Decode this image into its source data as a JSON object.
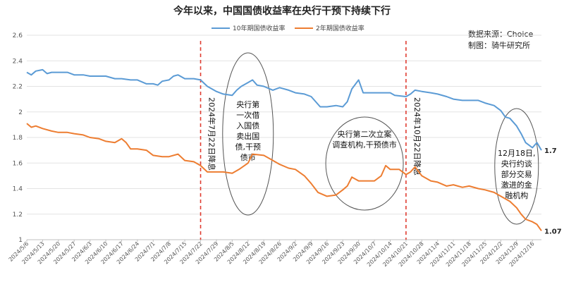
{
  "chart_data": {
    "type": "line",
    "title": "今年以来，中国国债收益率在央行干预下持续下行",
    "source": "数据来源：Choice",
    "maker": "制图：骑牛研究所",
    "ylim": [
      1.0,
      2.6
    ],
    "yticks": [
      "1",
      "1.2",
      "1.4",
      "1.6",
      "1.8",
      "2",
      "2.2",
      "2.4",
      "2.6"
    ],
    "x_start": "2024/5/6",
    "x_end": "2024/12/20",
    "x_ticks": [
      "2024/5/6",
      "2024/5/13",
      "2024/5/20",
      "2024/5/27",
      "2024/6/3",
      "2024/6/10",
      "2024/6/17",
      "2024/6/24",
      "2024/7/1",
      "2024/7/8",
      "2024/7/15",
      "2024/7/22",
      "2024/7/29",
      "2024/8/5",
      "2024/8/12",
      "2024/8/19",
      "2024/8/26",
      "2024/9/2",
      "2024/9/9",
      "2024/9/16",
      "2024/9/23",
      "2024/9/30",
      "2024/10/7",
      "2024/10/14",
      "2024/10/21",
      "2024/10/28",
      "2024/11/4",
      "2024/11/11",
      "2024/11/18",
      "2024/11/25",
      "2024/12/2",
      "2024/12/9",
      "2024/12/16"
    ],
    "grid": true,
    "legend_position": "top",
    "series": [
      {
        "name": "10年期国债收益率",
        "color": "#5B9BD5",
        "end_label": "1.7",
        "points": [
          [
            "2024/5/6",
            2.31
          ],
          [
            "2024/5/8",
            2.29
          ],
          [
            "2024/5/10",
            2.32
          ],
          [
            "2024/5/13",
            2.33
          ],
          [
            "2024/5/15",
            2.3
          ],
          [
            "2024/5/17",
            2.31
          ],
          [
            "2024/5/20",
            2.31
          ],
          [
            "2024/5/24",
            2.31
          ],
          [
            "2024/5/27",
            2.29
          ],
          [
            "2024/5/31",
            2.29
          ],
          [
            "2024/6/3",
            2.28
          ],
          [
            "2024/6/7",
            2.28
          ],
          [
            "2024/6/10",
            2.28
          ],
          [
            "2024/6/14",
            2.26
          ],
          [
            "2024/6/17",
            2.26
          ],
          [
            "2024/6/21",
            2.25
          ],
          [
            "2024/6/24",
            2.25
          ],
          [
            "2024/6/28",
            2.22
          ],
          [
            "2024/7/1",
            2.22
          ],
          [
            "2024/7/3",
            2.21
          ],
          [
            "2024/7/5",
            2.24
          ],
          [
            "2024/7/8",
            2.25
          ],
          [
            "2024/7/10",
            2.28
          ],
          [
            "2024/7/12",
            2.29
          ],
          [
            "2024/7/15",
            2.26
          ],
          [
            "2024/7/19",
            2.26
          ],
          [
            "2024/7/22",
            2.25
          ],
          [
            "2024/7/25",
            2.2
          ],
          [
            "2024/7/29",
            2.16
          ],
          [
            "2024/8/1",
            2.14
          ],
          [
            "2024/8/5",
            2.13
          ],
          [
            "2024/8/7",
            2.17
          ],
          [
            "2024/8/9",
            2.2
          ],
          [
            "2024/8/12",
            2.23
          ],
          [
            "2024/8/14",
            2.25
          ],
          [
            "2024/8/16",
            2.21
          ],
          [
            "2024/8/19",
            2.2
          ],
          [
            "2024/8/23",
            2.17
          ],
          [
            "2024/8/26",
            2.19
          ],
          [
            "2024/8/30",
            2.17
          ],
          [
            "2024/9/2",
            2.15
          ],
          [
            "2024/9/6",
            2.14
          ],
          [
            "2024/9/9",
            2.12
          ],
          [
            "2024/9/13",
            2.04
          ],
          [
            "2024/9/16",
            2.04
          ],
          [
            "2024/9/20",
            2.05
          ],
          [
            "2024/9/23",
            2.04
          ],
          [
            "2024/9/25",
            2.08
          ],
          [
            "2024/9/27",
            2.18
          ],
          [
            "2024/9/30",
            2.25
          ],
          [
            "2024/10/2",
            2.15
          ],
          [
            "2024/10/7",
            2.15
          ],
          [
            "2024/10/10",
            2.15
          ],
          [
            "2024/10/14",
            2.15
          ],
          [
            "2024/10/16",
            2.13
          ],
          [
            "2024/10/21",
            2.12
          ],
          [
            "2024/10/23",
            2.14
          ],
          [
            "2024/10/25",
            2.17
          ],
          [
            "2024/10/28",
            2.16
          ],
          [
            "2024/11/1",
            2.15
          ],
          [
            "2024/11/4",
            2.14
          ],
          [
            "2024/11/8",
            2.12
          ],
          [
            "2024/11/11",
            2.1
          ],
          [
            "2024/11/15",
            2.09
          ],
          [
            "2024/11/18",
            2.09
          ],
          [
            "2024/11/22",
            2.09
          ],
          [
            "2024/11/25",
            2.07
          ],
          [
            "2024/11/29",
            2.05
          ],
          [
            "2024/12/2",
            2.01
          ],
          [
            "2024/12/4",
            1.96
          ],
          [
            "2024/12/6",
            1.95
          ],
          [
            "2024/12/9",
            1.89
          ],
          [
            "2024/12/11",
            1.83
          ],
          [
            "2024/12/13",
            1.76
          ],
          [
            "2024/12/16",
            1.72
          ],
          [
            "2024/12/18",
            1.76
          ],
          [
            "2024/12/20",
            1.7
          ]
        ]
      },
      {
        "name": "2年期国债收益率",
        "color": "#ED7D31",
        "end_label": "1.07",
        "points": [
          [
            "2024/5/6",
            1.91
          ],
          [
            "2024/5/8",
            1.88
          ],
          [
            "2024/5/10",
            1.89
          ],
          [
            "2024/5/13",
            1.87
          ],
          [
            "2024/5/17",
            1.85
          ],
          [
            "2024/5/20",
            1.84
          ],
          [
            "2024/5/24",
            1.84
          ],
          [
            "2024/5/27",
            1.83
          ],
          [
            "2024/5/31",
            1.82
          ],
          [
            "2024/6/3",
            1.8
          ],
          [
            "2024/6/7",
            1.79
          ],
          [
            "2024/6/10",
            1.77
          ],
          [
            "2024/6/14",
            1.76
          ],
          [
            "2024/6/17",
            1.79
          ],
          [
            "2024/6/19",
            1.76
          ],
          [
            "2024/6/21",
            1.71
          ],
          [
            "2024/6/24",
            1.71
          ],
          [
            "2024/6/28",
            1.7
          ],
          [
            "2024/7/1",
            1.66
          ],
          [
            "2024/7/5",
            1.65
          ],
          [
            "2024/7/8",
            1.65
          ],
          [
            "2024/7/12",
            1.67
          ],
          [
            "2024/7/15",
            1.62
          ],
          [
            "2024/7/19",
            1.61
          ],
          [
            "2024/7/22",
            1.58
          ],
          [
            "2024/7/25",
            1.53
          ],
          [
            "2024/7/29",
            1.53
          ],
          [
            "2024/8/1",
            1.53
          ],
          [
            "2024/8/5",
            1.52
          ],
          [
            "2024/8/8",
            1.55
          ],
          [
            "2024/8/12",
            1.6
          ],
          [
            "2024/8/14",
            1.67
          ],
          [
            "2024/8/19",
            1.66
          ],
          [
            "2024/8/22",
            1.63
          ],
          [
            "2024/8/26",
            1.59
          ],
          [
            "2024/8/30",
            1.56
          ],
          [
            "2024/9/2",
            1.55
          ],
          [
            "2024/9/6",
            1.5
          ],
          [
            "2024/9/9",
            1.44
          ],
          [
            "2024/9/12",
            1.37
          ],
          [
            "2024/9/16",
            1.34
          ],
          [
            "2024/9/20",
            1.35
          ],
          [
            "2024/9/23",
            1.39
          ],
          [
            "2024/9/25",
            1.42
          ],
          [
            "2024/9/27",
            1.49
          ],
          [
            "2024/9/30",
            1.46
          ],
          [
            "2024/10/7",
            1.46
          ],
          [
            "2024/10/10",
            1.5
          ],
          [
            "2024/10/12",
            1.58
          ],
          [
            "2024/10/14",
            1.55
          ],
          [
            "2024/10/18",
            1.55
          ],
          [
            "2024/10/21",
            1.51
          ],
          [
            "2024/10/23",
            1.53
          ],
          [
            "2024/10/25",
            1.57
          ],
          [
            "2024/10/28",
            1.5
          ],
          [
            "2024/11/1",
            1.46
          ],
          [
            "2024/11/4",
            1.45
          ],
          [
            "2024/11/8",
            1.42
          ],
          [
            "2024/11/11",
            1.43
          ],
          [
            "2024/11/15",
            1.41
          ],
          [
            "2024/11/18",
            1.42
          ],
          [
            "2024/11/22",
            1.4
          ],
          [
            "2024/11/25",
            1.39
          ],
          [
            "2024/11/29",
            1.37
          ],
          [
            "2024/12/2",
            1.34
          ],
          [
            "2024/12/4",
            1.32
          ],
          [
            "2024/12/6",
            1.3
          ],
          [
            "2024/12/9",
            1.25
          ],
          [
            "2024/12/11",
            1.2
          ],
          [
            "2024/12/13",
            1.16
          ],
          [
            "2024/12/16",
            1.14
          ],
          [
            "2024/12/18",
            1.12
          ],
          [
            "2024/12/20",
            1.07
          ]
        ]
      }
    ],
    "events": [
      {
        "date": "2024/7/22",
        "label": "2024年7月22日降息",
        "color": "#E03C31"
      },
      {
        "date": "2024/10/21",
        "label": "2024年10月22日降息",
        "color": "#E03C31"
      }
    ],
    "annotations": [
      {
        "date": "2024/8/12",
        "lines": [
          "央行第",
          "一次借",
          "入国债",
          "卖出国",
          "债,干预",
          "债市"
        ]
      },
      {
        "date": "2024/10/2",
        "lines": [
          "央行第二次立案",
          "调查机构,干预债市"
        ]
      },
      {
        "date": "2024/12/9",
        "lines": [
          "12月18日,",
          "央行约谈",
          "部分交易",
          "激进的金",
          "融机构"
        ]
      }
    ]
  }
}
